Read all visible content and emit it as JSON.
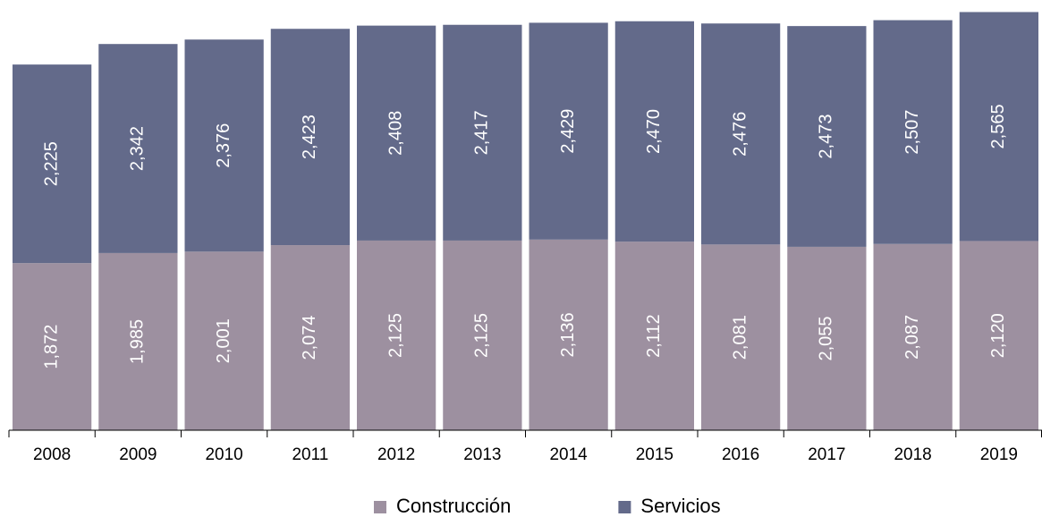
{
  "chart_data": {
    "type": "stacked_bar",
    "categories": [
      "2008",
      "2009",
      "2010",
      "2011",
      "2012",
      "2013",
      "2014",
      "2015",
      "2016",
      "2017",
      "2018",
      "2019"
    ],
    "series": [
      {
        "name": "Construcción",
        "color": "#9d90a0",
        "values": [
          1872,
          1985,
          2001,
          2074,
          2125,
          2125,
          2136,
          2112,
          2081,
          2055,
          2087,
          2120
        ],
        "value_labels": [
          "1,872",
          "1,985",
          "2,001",
          "2,074",
          "2,125",
          "2,125",
          "2,136",
          "2,112",
          "2,081",
          "2,055",
          "2,087",
          "2,120"
        ]
      },
      {
        "name": "Servicios",
        "color": "#636a8a",
        "values": [
          2225,
          2342,
          2376,
          2423,
          2408,
          2417,
          2429,
          2470,
          2476,
          2473,
          2507,
          2565
        ],
        "value_labels": [
          "2,225",
          "2,342",
          "2,376",
          "2,423",
          "2,408",
          "2,417",
          "2,429",
          "2,470",
          "2,476",
          "2,473",
          "2,507",
          "2,565"
        ]
      }
    ],
    "ylim": [
      0,
      4820
    ],
    "legend": "bottom"
  }
}
